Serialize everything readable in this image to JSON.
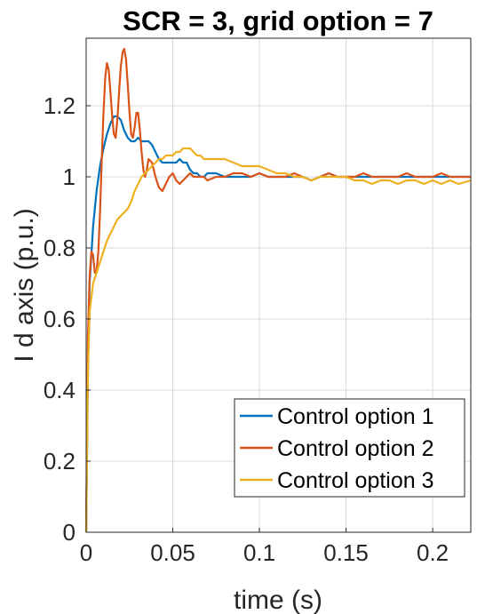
{
  "chart_data": {
    "type": "line",
    "title": "SCR = 3, grid option = 7",
    "xlabel": "time (s)",
    "ylabel": "I d axis (p.u.)",
    "xlim": [
      0,
      0.222
    ],
    "ylim": [
      0,
      1.39
    ],
    "xticks": [
      0,
      0.05,
      0.1,
      0.15,
      0.2
    ],
    "xtick_labels": [
      "0",
      "0.05",
      "0.1",
      "0.15",
      "0.2"
    ],
    "yticks": [
      0,
      0.2,
      0.4,
      0.6,
      0.8,
      1,
      1.2
    ],
    "ytick_labels": [
      "0",
      "0.2",
      "0.4",
      "0.6",
      "0.8",
      "1",
      "1.2"
    ],
    "grid": true,
    "legend_position": "bottom-right",
    "series": [
      {
        "name": "Control option 1",
        "color": "#0072BD",
        "x": [
          0,
          0.001,
          0.002,
          0.004,
          0.006,
          0.008,
          0.01,
          0.012,
          0.014,
          0.016,
          0.018,
          0.02,
          0.022,
          0.024,
          0.026,
          0.028,
          0.03,
          0.032,
          0.034,
          0.036,
          0.038,
          0.04,
          0.042,
          0.044,
          0.046,
          0.048,
          0.05,
          0.052,
          0.054,
          0.056,
          0.058,
          0.06,
          0.062,
          0.064,
          0.066,
          0.068,
          0.07,
          0.075,
          0.08,
          0.085,
          0.09,
          0.095,
          0.1,
          0.105,
          0.11,
          0.115,
          0.12,
          0.125,
          0.13,
          0.135,
          0.14,
          0.145,
          0.15,
          0.155,
          0.16,
          0.165,
          0.17,
          0.175,
          0.18,
          0.185,
          0.19,
          0.195,
          0.2,
          0.205,
          0.21,
          0.215,
          0.222
        ],
        "y": [
          0,
          0.45,
          0.7,
          0.86,
          0.96,
          1.03,
          1.08,
          1.12,
          1.15,
          1.17,
          1.17,
          1.16,
          1.13,
          1.11,
          1.1,
          1.1,
          1.11,
          1.1,
          1.1,
          1.1,
          1.09,
          1.07,
          1.05,
          1.04,
          1.04,
          1.04,
          1.04,
          1.04,
          1.05,
          1.04,
          1.04,
          1.02,
          1.01,
          1.01,
          1.0,
          1.0,
          1.01,
          1.01,
          1.0,
          1.0,
          1.0,
          1.0,
          1.01,
          1.0,
          1.0,
          1.0,
          1.0,
          1.0,
          0.99,
          1.0,
          1.01,
          1.0,
          1.0,
          1.0,
          1.0,
          1.0,
          1.0,
          1.0,
          1.0,
          1.0,
          1.0,
          1.0,
          1.0,
          1.0,
          1.0,
          1.0,
          1.0
        ]
      },
      {
        "name": "Control option 2",
        "color": "#D95319",
        "x": [
          0,
          0.001,
          0.002,
          0.003,
          0.004,
          0.005,
          0.006,
          0.007,
          0.008,
          0.009,
          0.01,
          0.011,
          0.012,
          0.013,
          0.014,
          0.015,
          0.016,
          0.017,
          0.018,
          0.019,
          0.02,
          0.021,
          0.022,
          0.023,
          0.024,
          0.025,
          0.026,
          0.027,
          0.028,
          0.029,
          0.03,
          0.031,
          0.032,
          0.033,
          0.034,
          0.035,
          0.036,
          0.038,
          0.04,
          0.042,
          0.044,
          0.046,
          0.048,
          0.05,
          0.052,
          0.054,
          0.056,
          0.058,
          0.06,
          0.062,
          0.064,
          0.066,
          0.068,
          0.07,
          0.075,
          0.08,
          0.085,
          0.09,
          0.095,
          0.1,
          0.105,
          0.11,
          0.115,
          0.12,
          0.125,
          0.13,
          0.135,
          0.14,
          0.145,
          0.15,
          0.155,
          0.16,
          0.165,
          0.17,
          0.175,
          0.18,
          0.185,
          0.19,
          0.195,
          0.2,
          0.205,
          0.21,
          0.215,
          0.222
        ],
        "y": [
          0,
          0.55,
          0.72,
          0.79,
          0.78,
          0.73,
          0.73,
          0.79,
          0.9,
          1.05,
          1.18,
          1.28,
          1.32,
          1.3,
          1.24,
          1.17,
          1.12,
          1.11,
          1.16,
          1.24,
          1.31,
          1.35,
          1.36,
          1.33,
          1.26,
          1.18,
          1.12,
          1.11,
          1.14,
          1.18,
          1.18,
          1.13,
          1.07,
          1.02,
          1.0,
          1.02,
          1.05,
          1.04,
          1.0,
          0.97,
          0.96,
          0.98,
          1.0,
          1.01,
          0.99,
          0.98,
          0.99,
          1.0,
          1.01,
          1.0,
          1.0,
          1.0,
          1.0,
          0.99,
          1.0,
          1.0,
          1.01,
          1.01,
          1.0,
          1.01,
          1.0,
          1.0,
          1.0,
          1.01,
          1.0,
          0.99,
          1.0,
          1.01,
          1.0,
          1.0,
          1.0,
          1.01,
          1.0,
          1.0,
          1.0,
          1.0,
          1.01,
          1.0,
          1.0,
          1.0,
          1.01,
          1.0,
          1.0,
          1.0
        ]
      },
      {
        "name": "Control option 3",
        "color": "#EDB120",
        "x": [
          0,
          0.001,
          0.002,
          0.004,
          0.006,
          0.008,
          0.01,
          0.012,
          0.014,
          0.016,
          0.018,
          0.02,
          0.022,
          0.024,
          0.026,
          0.028,
          0.03,
          0.032,
          0.034,
          0.036,
          0.038,
          0.04,
          0.042,
          0.044,
          0.046,
          0.048,
          0.05,
          0.052,
          0.054,
          0.056,
          0.058,
          0.06,
          0.062,
          0.064,
          0.066,
          0.068,
          0.07,
          0.075,
          0.08,
          0.085,
          0.09,
          0.095,
          0.1,
          0.105,
          0.11,
          0.115,
          0.12,
          0.125,
          0.13,
          0.135,
          0.14,
          0.145,
          0.15,
          0.155,
          0.16,
          0.165,
          0.17,
          0.175,
          0.18,
          0.185,
          0.19,
          0.195,
          0.2,
          0.205,
          0.21,
          0.215,
          0.222
        ],
        "y": [
          0,
          0.45,
          0.62,
          0.7,
          0.73,
          0.76,
          0.79,
          0.82,
          0.84,
          0.86,
          0.88,
          0.89,
          0.9,
          0.91,
          0.93,
          0.96,
          0.98,
          1.0,
          1.01,
          1.02,
          1.03,
          1.04,
          1.05,
          1.05,
          1.06,
          1.06,
          1.06,
          1.07,
          1.07,
          1.08,
          1.08,
          1.08,
          1.07,
          1.06,
          1.06,
          1.05,
          1.05,
          1.05,
          1.05,
          1.04,
          1.03,
          1.03,
          1.03,
          1.02,
          1.01,
          1.01,
          1.0,
          1.0,
          0.99,
          1.0,
          1.0,
          1.0,
          1.0,
          0.99,
          0.99,
          0.98,
          0.99,
          0.99,
          0.98,
          0.99,
          0.99,
          0.98,
          0.99,
          0.98,
          0.99,
          0.98,
          0.99
        ]
      }
    ]
  }
}
